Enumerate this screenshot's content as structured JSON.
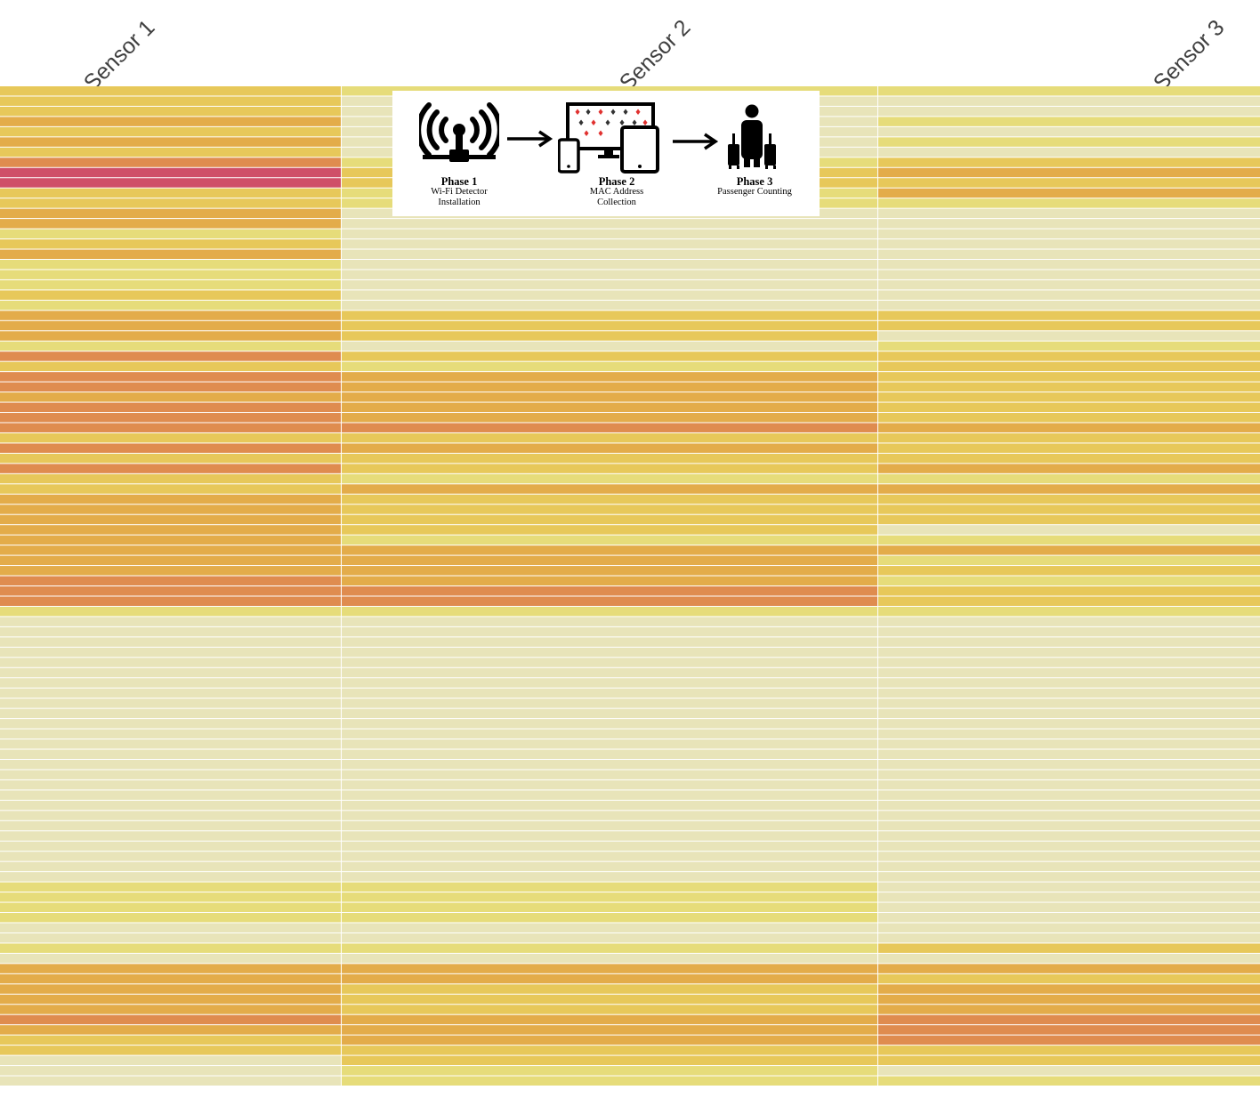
{
  "chart_data": {
    "type": "heatmap",
    "columns": [
      "Sensor 1",
      "Sensor 2",
      "Sensor 3"
    ],
    "color_scale": [
      "#e8e4b9",
      "#e6dc7a",
      "#e7c85a",
      "#e3ac4a",
      "#df8c4f",
      "#cf4f68"
    ],
    "color_scale_note_levels": [
      0,
      1,
      2,
      3,
      4,
      5
    ],
    "values": [
      [
        2,
        1,
        1
      ],
      [
        2,
        0,
        0
      ],
      [
        2,
        0,
        0
      ],
      [
        3,
        0,
        1
      ],
      [
        2,
        0,
        0
      ],
      [
        3,
        0,
        1
      ],
      [
        2,
        0,
        0
      ],
      [
        4,
        1,
        2
      ],
      [
        5,
        2,
        3
      ],
      [
        5,
        2,
        2
      ],
      [
        2,
        1,
        3
      ],
      [
        2,
        1,
        1
      ],
      [
        3,
        0,
        0
      ],
      [
        3,
        0,
        0
      ],
      [
        1,
        0,
        0
      ],
      [
        2,
        0,
        0
      ],
      [
        3,
        0,
        0
      ],
      [
        1,
        0,
        0
      ],
      [
        1,
        0,
        0
      ],
      [
        1,
        0,
        0
      ],
      [
        2,
        0,
        0
      ],
      [
        1,
        0,
        0
      ],
      [
        3,
        2,
        2
      ],
      [
        3,
        2,
        2
      ],
      [
        3,
        2,
        0
      ],
      [
        1,
        0,
        1
      ],
      [
        4,
        2,
        2
      ],
      [
        2,
        1,
        2
      ],
      [
        4,
        3,
        2
      ],
      [
        4,
        3,
        2
      ],
      [
        3,
        3,
        2
      ],
      [
        4,
        3,
        2
      ],
      [
        4,
        3,
        2
      ],
      [
        4,
        4,
        3
      ],
      [
        2,
        2,
        2
      ],
      [
        4,
        3,
        2
      ],
      [
        2,
        2,
        2
      ],
      [
        4,
        2,
        3
      ],
      [
        2,
        1,
        1
      ],
      [
        2,
        3,
        3
      ],
      [
        3,
        2,
        2
      ],
      [
        3,
        2,
        2
      ],
      [
        3,
        2,
        2
      ],
      [
        3,
        2,
        0
      ],
      [
        3,
        1,
        1
      ],
      [
        3,
        3,
        3
      ],
      [
        3,
        3,
        1
      ],
      [
        3,
        3,
        2
      ],
      [
        4,
        3,
        1
      ],
      [
        4,
        4,
        2
      ],
      [
        4,
        4,
        2
      ],
      [
        1,
        1,
        1
      ],
      [
        0,
        0,
        0
      ],
      [
        0,
        0,
        0
      ],
      [
        0,
        0,
        0
      ],
      [
        0,
        0,
        0
      ],
      [
        0,
        0,
        0
      ],
      [
        0,
        0,
        0
      ],
      [
        0,
        0,
        0
      ],
      [
        0,
        0,
        0
      ],
      [
        0,
        0,
        0
      ],
      [
        0,
        0,
        0
      ],
      [
        0,
        0,
        0
      ],
      [
        0,
        0,
        0
      ],
      [
        0,
        0,
        0
      ],
      [
        0,
        0,
        0
      ],
      [
        0,
        0,
        0
      ],
      [
        0,
        0,
        0
      ],
      [
        0,
        0,
        0
      ],
      [
        0,
        0,
        0
      ],
      [
        0,
        0,
        0
      ],
      [
        0,
        0,
        0
      ],
      [
        0,
        0,
        0
      ],
      [
        0,
        0,
        0
      ],
      [
        0,
        0,
        0
      ],
      [
        0,
        0,
        0
      ],
      [
        0,
        0,
        0
      ],
      [
        0,
        0,
        0
      ],
      [
        1,
        1,
        0
      ],
      [
        1,
        1,
        0
      ],
      [
        1,
        1,
        0
      ],
      [
        1,
        1,
        0
      ],
      [
        0,
        0,
        0
      ],
      [
        0,
        0,
        0
      ],
      [
        1,
        1,
        2
      ],
      [
        0,
        0,
        0
      ],
      [
        3,
        3,
        3
      ],
      [
        3,
        3,
        2
      ],
      [
        3,
        2,
        3
      ],
      [
        3,
        2,
        3
      ],
      [
        3,
        2,
        3
      ],
      [
        4,
        3,
        4
      ],
      [
        3,
        3,
        4
      ],
      [
        2,
        3,
        4
      ],
      [
        2,
        2,
        2
      ],
      [
        0,
        2,
        2
      ],
      [
        0,
        1,
        0
      ],
      [
        0,
        1,
        1
      ]
    ],
    "xlabel": "",
    "ylabel": "",
    "grid": false,
    "legend": "none"
  },
  "inset": {
    "phases": [
      {
        "title": "Phase 1",
        "description": "Wi-Fi Detector\nInstallation",
        "icon": "wifi-detector-icon"
      },
      {
        "title": "Phase 2",
        "description": "MAC Address\nCollection",
        "icon": "devices-icon"
      },
      {
        "title": "Phase 3",
        "description": "Passenger Counting",
        "icon": "passenger-luggage-icon"
      }
    ],
    "arrow_icon": "arrow-right-icon",
    "icon_color": "#000000",
    "accent_color": "#e0312f"
  }
}
